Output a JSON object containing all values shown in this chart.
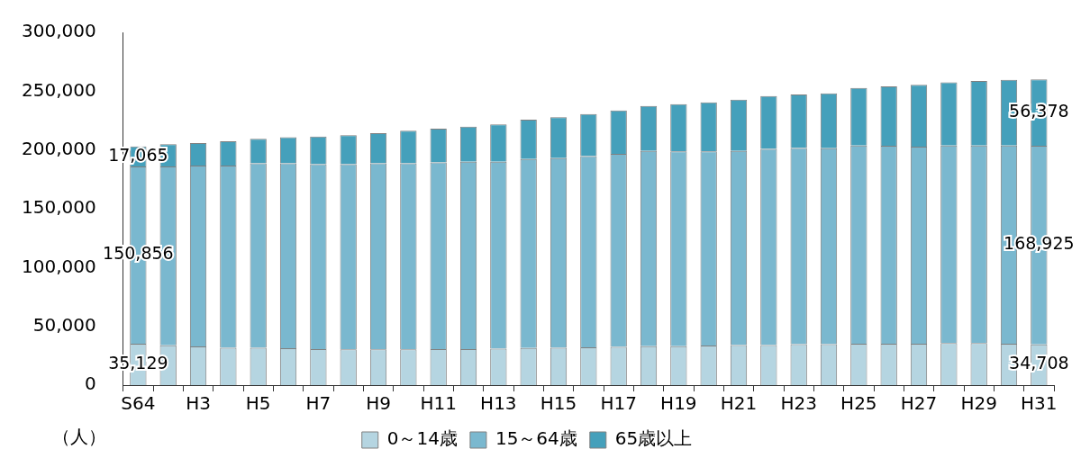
{
  "chart_data": {
    "type": "bar",
    "stacked": true,
    "ylabel": "（人）",
    "categories": [
      "S64",
      null,
      "H3",
      null,
      "H5",
      null,
      "H7",
      null,
      "H9",
      null,
      "H11",
      null,
      "H13",
      null,
      "H15",
      null,
      "H17",
      null,
      "H19",
      null,
      "H21",
      null,
      "H23",
      null,
      "H25",
      null,
      "H27",
      null,
      "H29",
      null,
      "H31"
    ],
    "series": [
      {
        "name": "0～14歳",
        "color": "#b5d5e1",
        "values": [
          35129,
          33900,
          32900,
          31800,
          31800,
          31300,
          30700,
          30500,
          30500,
          30500,
          30700,
          30700,
          31000,
          31600,
          31700,
          32200,
          32600,
          33100,
          33100,
          33700,
          34000,
          34000,
          34900,
          34900,
          35200,
          35200,
          35200,
          35800,
          35800,
          35200,
          34708
        ],
        "value_labels": [
          "35,129",
          null,
          null,
          null,
          null,
          null,
          null,
          null,
          null,
          null,
          null,
          null,
          null,
          null,
          null,
          null,
          null,
          null,
          null,
          null,
          null,
          null,
          null,
          null,
          null,
          null,
          null,
          null,
          null,
          null,
          "34,708"
        ]
      },
      {
        "name": "15～64歳",
        "color": "#7ab8cf",
        "values": [
          150856,
          152100,
          153900,
          155000,
          156800,
          157300,
          157100,
          157300,
          158100,
          158100,
          158700,
          159200,
          158900,
          160700,
          161400,
          162500,
          164100,
          166000,
          165700,
          165100,
          165100,
          166900,
          166800,
          166600,
          168600,
          168300,
          167700,
          168000,
          168000,
          168600,
          168925
        ],
        "value_labels": [
          "150,856",
          null,
          null,
          null,
          null,
          null,
          null,
          null,
          null,
          null,
          null,
          null,
          null,
          null,
          null,
          null,
          null,
          null,
          null,
          null,
          null,
          null,
          null,
          null,
          null,
          null,
          null,
          null,
          null,
          null,
          "168,925"
        ]
      },
      {
        "name": "65歳以上",
        "color": "#45a0bb",
        "values": [
          17065,
          19000,
          19000,
          20600,
          20900,
          22300,
          23600,
          24700,
          25700,
          27800,
          28800,
          29900,
          31800,
          33400,
          34700,
          35800,
          37000,
          38400,
          40200,
          41700,
          43700,
          44900,
          45500,
          46600,
          49000,
          50500,
          52600,
          53800,
          54900,
          55800,
          56378
        ],
        "value_labels": [
          "17,065",
          null,
          null,
          null,
          null,
          null,
          null,
          null,
          null,
          null,
          null,
          null,
          null,
          null,
          null,
          null,
          null,
          null,
          null,
          null,
          null,
          null,
          null,
          null,
          null,
          null,
          null,
          null,
          null,
          null,
          "56,378"
        ]
      }
    ],
    "ylim": [
      0,
      300000
    ],
    "yticks": [
      {
        "value": 0,
        "label": "0"
      },
      {
        "value": 50000,
        "label": "50,000"
      },
      {
        "value": 100000,
        "label": "100,000"
      },
      {
        "value": 150000,
        "label": "150,000"
      },
      {
        "value": 200000,
        "label": "200,000"
      },
      {
        "value": 250000,
        "label": "250,000"
      },
      {
        "value": 300000,
        "label": "300,000"
      }
    ],
    "legend": "bottom"
  }
}
